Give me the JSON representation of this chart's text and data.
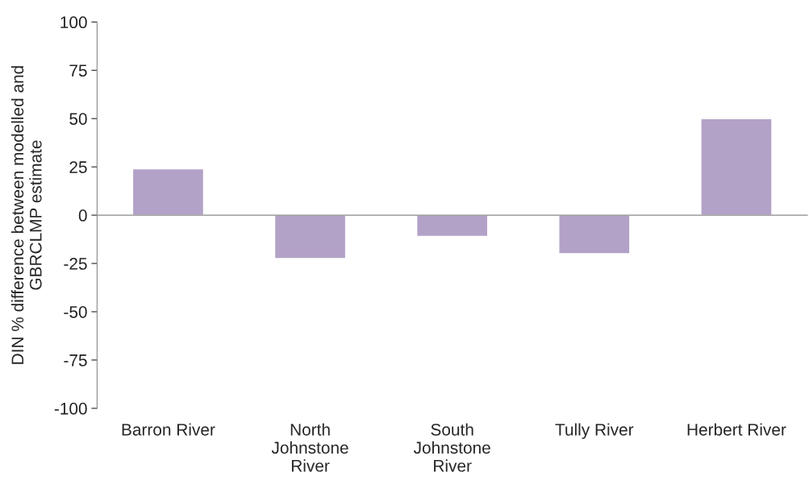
{
  "chart_data": {
    "type": "bar",
    "ylabel": "DIN % difference between modelled and\nGBRCLMP estimate",
    "categories": [
      "Barron River",
      "North\nJohnstone\nRiver",
      "South\nJohnstone\nRiver",
      "Tully River",
      "Herbert River"
    ],
    "values": [
      24,
      -22.5,
      -11,
      -20,
      50
    ],
    "color": "#b3a2c7",
    "ylim": [
      -100,
      100
    ],
    "yticks": [
      -100,
      -75,
      -50,
      -25,
      0,
      25,
      50,
      75,
      100
    ],
    "legend": false
  }
}
